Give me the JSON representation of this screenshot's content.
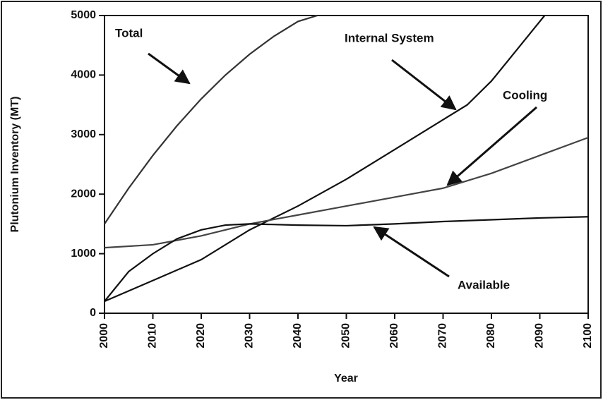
{
  "chart_data": {
    "type": "line",
    "x_label": "Year",
    "y_label": "Plutonium Inventory (MT)",
    "xlim": [
      2000,
      2100
    ],
    "xticks": [
      2000,
      2010,
      2020,
      2030,
      2040,
      2050,
      2060,
      2070,
      2080,
      2090,
      2100
    ],
    "ylim": [
      0,
      5000
    ],
    "yticks": [
      0,
      1000,
      2000,
      3000,
      4000,
      5000
    ],
    "annotations": [
      "Total",
      "Internal System",
      "Cooling",
      "Available"
    ],
    "series": [
      {
        "color": "#333333",
        "x": [
          2000,
          2005,
          2010,
          2015,
          2020,
          2025,
          2030,
          2035,
          2040,
          2044
        ],
        "values": [
          1500,
          2100,
          2650,
          3150,
          3600,
          4000,
          4350,
          4650,
          4900,
          5000
        ]
      },
      {
        "color": "#111111",
        "x": [
          2000,
          2010,
          2020,
          2030,
          2040,
          2050,
          2060,
          2070,
          2075,
          2080,
          2085,
          2091
        ],
        "values": [
          200,
          550,
          900,
          1400,
          1800,
          2250,
          2750,
          3250,
          3500,
          3900,
          4400,
          5000
        ]
      },
      {
        "color": "#444444",
        "x": [
          2000,
          2010,
          2020,
          2030,
          2040,
          2050,
          2060,
          2070,
          2080,
          2090,
          2100
        ],
        "values": [
          1100,
          1150,
          1300,
          1500,
          1650,
          1800,
          1950,
          2100,
          2350,
          2650,
          2950
        ]
      },
      {
        "color": "#111111",
        "x": [
          2000,
          2005,
          2010,
          2015,
          2020,
          2025,
          2030,
          2040,
          2050,
          2060,
          2070,
          2080,
          2090,
          2100
        ],
        "values": [
          200,
          700,
          1000,
          1250,
          1400,
          1480,
          1500,
          1480,
          1470,
          1500,
          1540,
          1570,
          1600,
          1620
        ]
      }
    ]
  }
}
